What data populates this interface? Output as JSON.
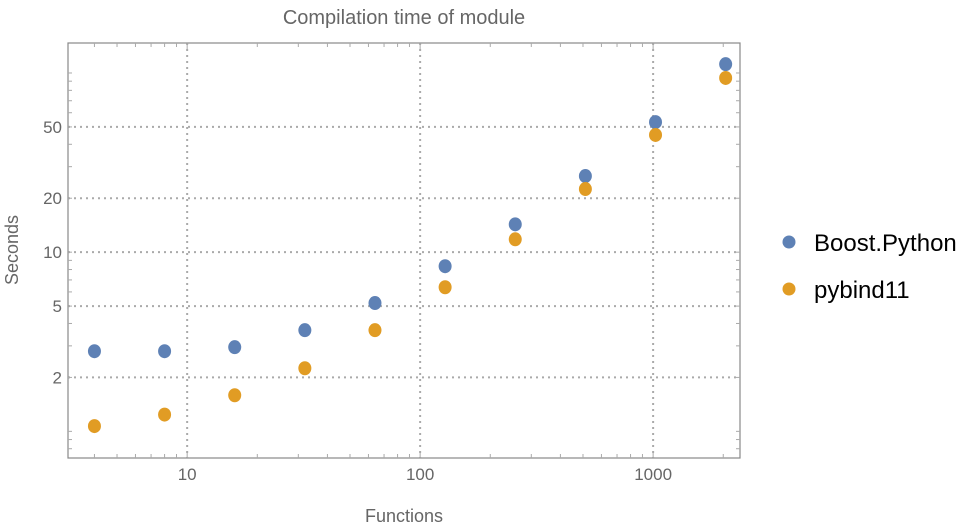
{
  "chart_data": {
    "type": "scatter",
    "title": "Compilation time of module",
    "xlabel": "Functions",
    "ylabel": "Seconds",
    "x_scale": "log",
    "y_scale": "log",
    "xlim": [
      3.08,
      2360
    ],
    "ylim": [
      0.71,
      147
    ],
    "grid": true,
    "legend_position": "right",
    "x_ticks": [
      {
        "value": 10,
        "label": "10"
      },
      {
        "value": 100,
        "label": "100"
      },
      {
        "value": 1000,
        "label": "1000"
      }
    ],
    "y_ticks": [
      {
        "value": 2,
        "label": "2"
      },
      {
        "value": 5,
        "label": "5"
      },
      {
        "value": 10,
        "label": "10"
      },
      {
        "value": 20,
        "label": "20"
      },
      {
        "value": 50,
        "label": "50"
      }
    ],
    "x": [
      4,
      8,
      16,
      32,
      64,
      128,
      256,
      512,
      1024,
      2048
    ],
    "series": [
      {
        "name": "Boost.Python",
        "color": "#5E81B5",
        "values": [
          2.8,
          2.8,
          2.95,
          3.67,
          5.2,
          8.35,
          14.3,
          26.6,
          53.2,
          112
        ]
      },
      {
        "name": "pybind11",
        "color": "#E19C24",
        "values": [
          1.07,
          1.24,
          1.59,
          2.25,
          3.67,
          6.37,
          11.8,
          22.5,
          45.1,
          93.8
        ]
      }
    ]
  }
}
